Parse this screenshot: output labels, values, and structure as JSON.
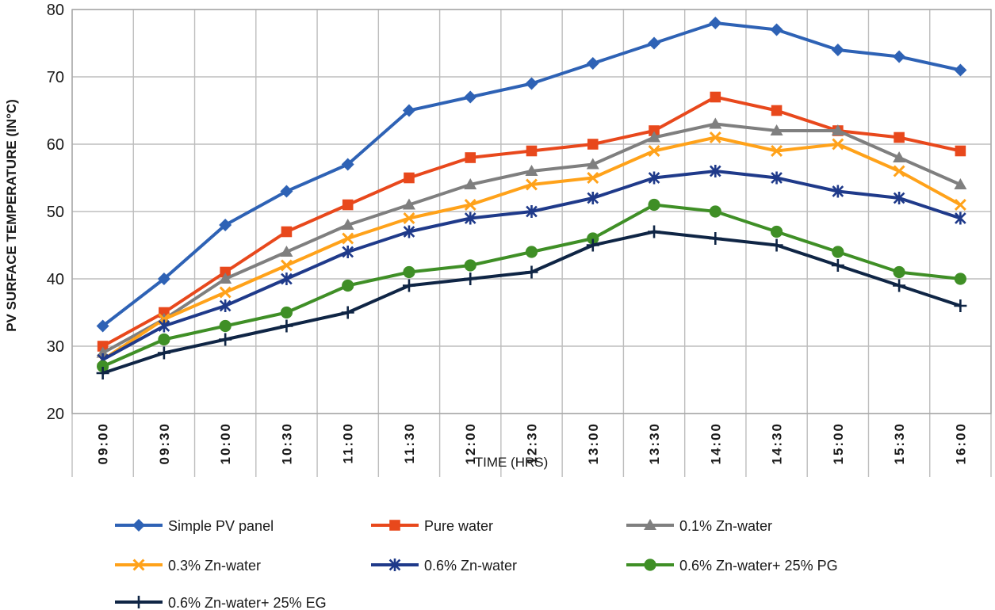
{
  "chart_data": {
    "type": "line",
    "title": "",
    "xlabel": "TIME (HRS)",
    "ylabel": "PV SURFACE TEMPERATURE (IN°C)",
    "ylim": [
      20,
      80
    ],
    "yticks": [
      20,
      30,
      40,
      50,
      60,
      70,
      80
    ],
    "grid": true,
    "legend_position": "bottom",
    "categories": [
      "09:00",
      "09:30",
      "10:00",
      "10:30",
      "11:00",
      "11:30",
      "12:00",
      "12:30",
      "13:00",
      "13:30",
      "14:00",
      "14:30",
      "15:00",
      "15:30",
      "16:00"
    ],
    "series": [
      {
        "name": "Simple PV panel",
        "color": "#2e62b5",
        "marker": "diamond",
        "values": [
          33,
          40,
          48,
          53,
          57,
          65,
          67,
          69,
          72,
          75,
          78,
          77,
          74,
          73,
          71
        ]
      },
      {
        "name": "Pure water",
        "color": "#e8481c",
        "marker": "square",
        "values": [
          30,
          35,
          41,
          47,
          51,
          55,
          58,
          59,
          60,
          62,
          67,
          65,
          62,
          61,
          59
        ]
      },
      {
        "name": "0.1% Zn-water",
        "color": "#7f7f7f",
        "marker": "triangle",
        "values": [
          29,
          34,
          40,
          44,
          48,
          51,
          54,
          56,
          57,
          61,
          63,
          62,
          62,
          58,
          54
        ]
      },
      {
        "name": "0.3% Zn-water",
        "color": "#ffa21a",
        "marker": "x",
        "values": [
          28,
          34,
          38,
          42,
          46,
          49,
          51,
          54,
          55,
          59,
          61,
          59,
          60,
          56,
          51
        ]
      },
      {
        "name": "0.6% Zn-water",
        "color": "#1f3a8a",
        "marker": "asterisk",
        "values": [
          28,
          33,
          36,
          40,
          44,
          47,
          49,
          50,
          52,
          55,
          56,
          55,
          53,
          52,
          49
        ]
      },
      {
        "name": "0.6% Zn-water+  25% PG",
        "color": "#3f8f26",
        "marker": "circle",
        "values": [
          27,
          31,
          33,
          35,
          39,
          41,
          42,
          44,
          46,
          51,
          50,
          47,
          44,
          41,
          40
        ]
      },
      {
        "name": "0.6% Zn-water+ 25% EG",
        "color": "#0f2545",
        "marker": "plus",
        "values": [
          26,
          29,
          31,
          33,
          35,
          39,
          40,
          41,
          45,
          47,
          46,
          45,
          42,
          39,
          36
        ]
      }
    ]
  }
}
